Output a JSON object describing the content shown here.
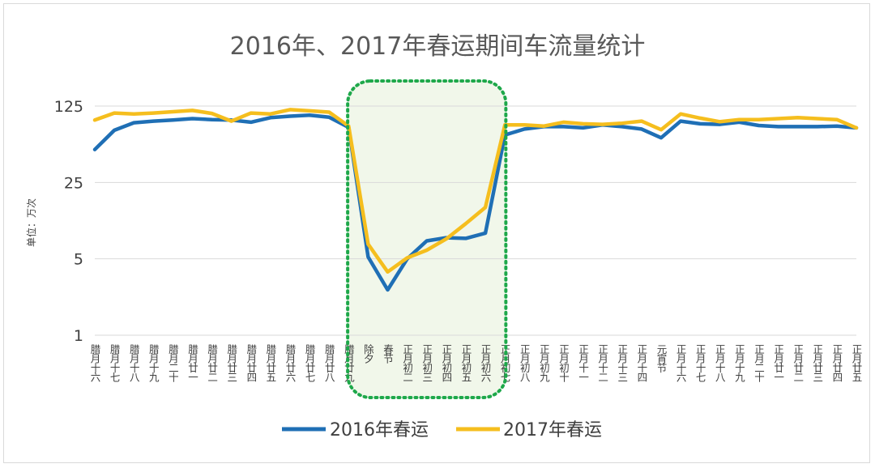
{
  "chart_data": {
    "type": "line",
    "title": "2016年、2017年春运期间车流量统计",
    "ylabel": "单位：万次",
    "xlabel": "",
    "yscale": "log",
    "yticks": [
      1,
      5,
      25,
      125
    ],
    "ylim": [
      1,
      125
    ],
    "grid": true,
    "legend_position": "bottom",
    "categories": [
      "腊月十六",
      "腊月十七",
      "腊月十八",
      "腊月十九",
      "腊月二十",
      "腊月廿一",
      "腊月廿二",
      "腊月廿三",
      "腊月廿四",
      "腊月廿五",
      "腊月廿六",
      "腊月廿七",
      "腊月廿八",
      "腊月廿九",
      "除夕",
      "春节",
      "正月初二",
      "正月初三",
      "正月初四",
      "正月初五",
      "正月初六",
      "正月初七",
      "正月初八",
      "正月初九",
      "正月初十",
      "正月十一",
      "正月十二",
      "正月十三",
      "正月十四",
      "元宵节",
      "正月十六",
      "正月十七",
      "正月十八",
      "正月十九",
      "正月二十",
      "正月廿一",
      "正月廿二",
      "正月廿三",
      "正月廿四",
      "正月廿五"
    ],
    "series": [
      {
        "name": "2016年春运",
        "color": "#1f6fb5",
        "values": [
          50,
          75,
          88,
          91,
          93,
          96,
          94,
          93,
          89,
          98,
          101,
          103,
          99,
          80,
          5.2,
          2.6,
          5,
          7.3,
          7.8,
          7.7,
          8.6,
          68,
          77,
          81,
          81,
          79,
          84,
          81,
          77,
          64,
          91,
          86,
          85,
          89,
          83,
          81,
          81,
          81,
          82,
          79
        ]
      },
      {
        "name": "2017年春运",
        "color": "#f5be1e",
        "values": [
          93,
          108,
          106,
          108,
          111,
          114,
          107,
          91,
          108,
          106,
          116,
          113,
          110,
          82,
          6.8,
          3.8,
          5.1,
          6,
          7.6,
          10.5,
          14.8,
          84,
          84,
          82,
          89,
          86,
          85,
          87,
          91,
          76,
          106,
          97,
          90,
          94,
          94,
          96,
          98,
          96,
          94,
          79
        ]
      }
    ]
  },
  "legend": {
    "items": [
      {
        "label": "2016年春运",
        "color": "#1f6fb5"
      },
      {
        "label": "2017年春运",
        "color": "#f5be1e"
      }
    ]
  },
  "highlight": {
    "first_category": "腊月廿九",
    "last_category": "正月初七",
    "border_color": "#1ea84a",
    "fill_color": "#eef6e6"
  }
}
